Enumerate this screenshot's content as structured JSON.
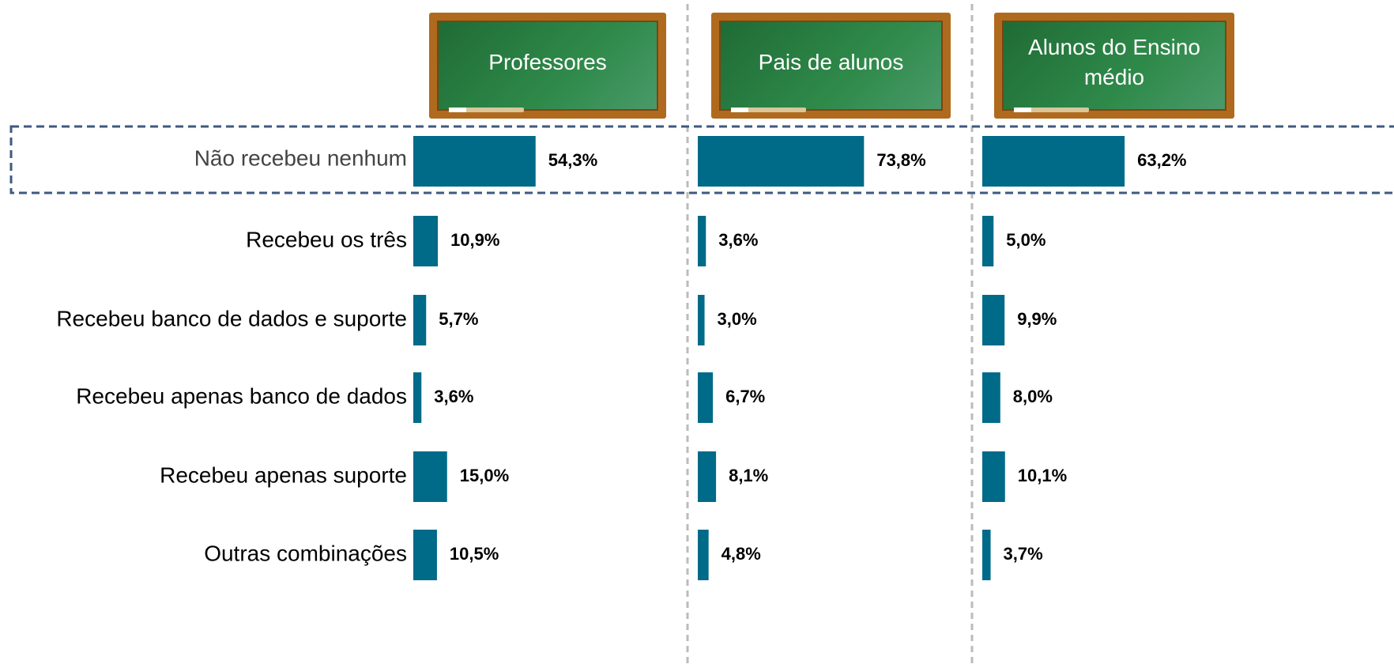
{
  "chart_data": {
    "type": "bar",
    "orientation": "horizontal",
    "categories": [
      "Não recebeu nenhum",
      "Recebeu os três",
      "Recebeu banco de dados e suporte",
      "Recebeu apenas banco de dados",
      "Recebeu apenas suporte",
      "Outras combinações"
    ],
    "color": "#006a89",
    "series": [
      {
        "name": "Professores",
        "color": "#006a89",
        "values": [
          54.3,
          10.9,
          5.7,
          3.6,
          15.0,
          10.5
        ],
        "value_labels": [
          "54,3%",
          "10,9%",
          "5,7%",
          "3,6%",
          "15,0%",
          "10,5%"
        ]
      },
      {
        "name": "Pais de alunos",
        "color": "#006a89",
        "values": [
          73.8,
          3.6,
          3.0,
          6.7,
          8.1,
          4.8
        ],
        "value_labels": [
          "73,8%",
          "3,6%",
          "3,0%",
          "6,7%",
          "8,1%",
          "4,8%"
        ]
      },
      {
        "name": "Alunos do Ensino médio",
        "color": "#006a89",
        "values": [
          63.2,
          5.0,
          9.9,
          8.0,
          10.1,
          3.7
        ],
        "value_labels": [
          "63,2%",
          "5,0%",
          "9,9%",
          "8,0%",
          "10,1%",
          "3,7%"
        ]
      }
    ]
  }
}
